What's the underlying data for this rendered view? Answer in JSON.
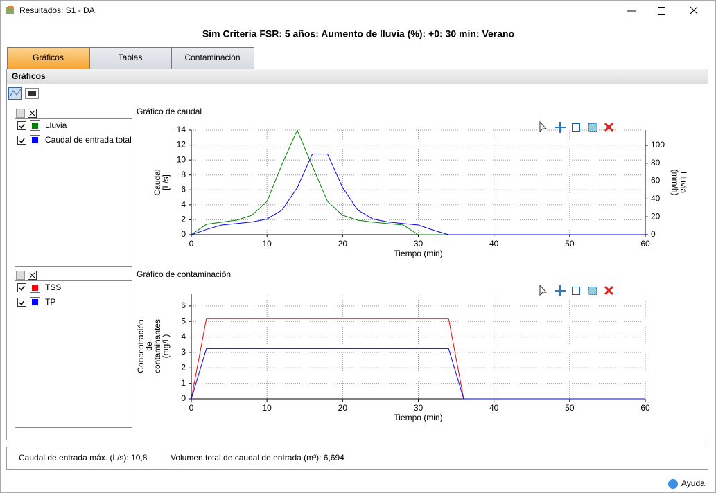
{
  "window": {
    "title": "Resultados: S1 - DA"
  },
  "header": "Sim Criteria FSR: 5 años: Aumento de lluvia (%): +0: 30 min: Verano",
  "tabs": [
    "Gráficos",
    "Tablas",
    "Contaminación"
  ],
  "section": "Gráficos",
  "chart_data": [
    {
      "type": "line",
      "title": "Gráfico de caudal",
      "x_label": "Tiempo (min)",
      "y_label": [
        "Caudal",
        "[L/s]"
      ],
      "y2_label": [
        "Lluvia",
        "(mm/h)"
      ],
      "x": [
        0,
        2,
        4,
        6,
        8,
        10,
        12,
        14,
        16,
        18,
        20,
        22,
        24,
        26,
        28,
        30,
        32,
        34,
        36,
        38,
        40,
        42,
        44,
        46,
        48,
        50,
        52,
        54,
        56,
        58,
        60
      ],
      "xlim": [
        0,
        60
      ],
      "xticks": [
        0,
        10,
        20,
        30,
        40,
        50,
        60
      ],
      "ylim": [
        0,
        14
      ],
      "yticks": [
        0,
        2,
        4,
        6,
        8,
        10,
        12,
        14
      ],
      "y2lim": [
        0,
        117
      ],
      "y2ticks": [
        0,
        20,
        40,
        60,
        80,
        100
      ],
      "grid": true,
      "series": [
        {
          "name": "Lluvia",
          "color": "#008000",
          "axis": "y2",
          "values": [
            0,
            11.6,
            14,
            16.3,
            21.7,
            37.2,
            79,
            117,
            76.7,
            37.2,
            21.7,
            16.3,
            14,
            12.4,
            10.9,
            0,
            0,
            0,
            0,
            0,
            0,
            0,
            0,
            0,
            0,
            0,
            0,
            0,
            0,
            0,
            0
          ]
        },
        {
          "name": "Caudal de entrada total",
          "color": "#0000ff",
          "values": [
            0,
            0.7,
            1.3,
            1.5,
            1.7,
            2.1,
            3.3,
            6.3,
            10.8,
            10.8,
            6.3,
            3.3,
            2.1,
            1.7,
            1.5,
            1.3,
            0.6,
            0,
            0,
            0,
            0,
            0,
            0,
            0,
            0,
            0,
            0,
            0,
            0,
            0,
            0
          ]
        }
      ]
    },
    {
      "type": "line",
      "title": "Gráfico de contaminación",
      "x_label": "Tiempo (min)",
      "y_label": [
        "Concentración",
        "de",
        "contaminantes",
        "(mg/L)"
      ],
      "x": [
        0,
        2,
        34,
        36,
        60
      ],
      "xlim": [
        0,
        60
      ],
      "xticks": [
        0,
        10,
        20,
        30,
        40,
        50,
        60
      ],
      "ylim": [
        0,
        6.8
      ],
      "yticks": [
        0,
        1,
        2,
        3,
        4,
        5,
        6
      ],
      "grid": true,
      "series": [
        {
          "name": "TSS",
          "color": "#ff0000",
          "values": [
            0,
            5.2,
            5.2,
            0,
            0
          ]
        },
        {
          "name": "TP",
          "color": "#0000ff",
          "values": [
            0,
            3.25,
            3.25,
            0,
            0
          ]
        }
      ]
    }
  ],
  "summary": [
    "Caudal de entrada máx. (L/s): 10,8",
    "Volumen total de caudal de entrada (m³): 6,694"
  ],
  "help": "Ayuda"
}
